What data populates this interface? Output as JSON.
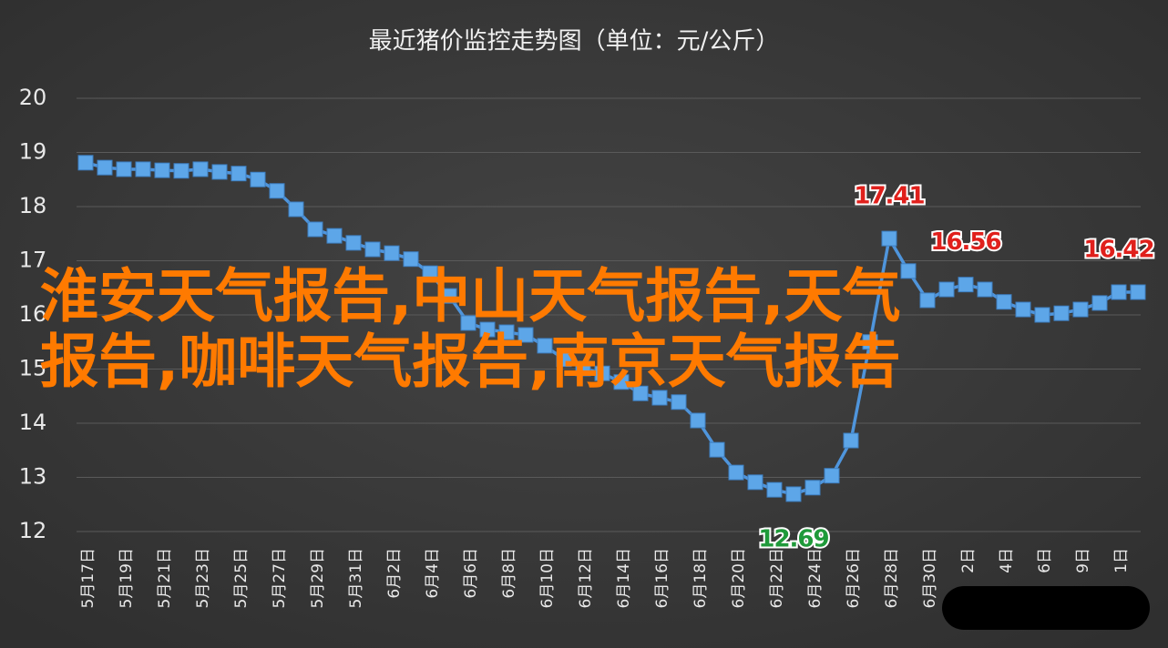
{
  "chart_data": {
    "type": "line",
    "title": "最近猪价监控走势图（单位：元/公斤）",
    "categories": [
      "5月17日",
      null,
      "5月19日",
      null,
      "5月21日",
      null,
      "5月23日",
      null,
      "5月25日",
      null,
      "5月27日",
      null,
      "5月29日",
      null,
      "5月31日",
      null,
      "6月2日",
      null,
      "6月4日",
      null,
      "6月6日",
      null,
      "6月8日",
      null,
      "6月10日",
      null,
      "6月12日",
      null,
      "6月14日",
      null,
      "6月16日",
      null,
      "6月18日",
      null,
      "6月20日",
      null,
      "6月22日",
      null,
      "6月24日",
      null,
      "6月26日",
      null,
      "6月28日",
      null,
      "6月30日",
      null,
      "2日",
      null,
      "4日",
      null,
      "6日",
      null,
      "9日",
      null,
      "1日",
      null
    ],
    "values": [
      18.81,
      18.72,
      18.69,
      18.69,
      18.67,
      18.66,
      18.69,
      18.64,
      18.61,
      18.5,
      18.29,
      17.95,
      17.58,
      17.46,
      17.33,
      17.21,
      17.14,
      17.03,
      16.77,
      16.35,
      15.85,
      15.73,
      15.68,
      15.63,
      15.43,
      15.18,
      15.01,
      14.92,
      14.76,
      14.55,
      14.47,
      14.39,
      14.05,
      13.51,
      13.09,
      12.91,
      12.77,
      12.69,
      12.81,
      13.03,
      13.68,
      15.5,
      17.41,
      16.81,
      16.27,
      16.47,
      16.56,
      16.47,
      16.24,
      16.1,
      16.0,
      16.03,
      16.1,
      16.22,
      16.42,
      16.42
    ],
    "color": "#4f95dc",
    "marker_color": "#5da6e8",
    "labeled_points": [
      {
        "index": 42,
        "color": "#e0201c"
      },
      {
        "index": 46,
        "color": "#e0201c"
      },
      {
        "index": 54,
        "color": "#e0201c"
      },
      {
        "index": 37,
        "color": "#1f9a3a"
      }
    ],
    "ylim": [
      12,
      20
    ],
    "yticks": [
      12,
      13,
      14,
      15,
      16,
      17,
      18,
      19,
      20
    ],
    "grid": true,
    "overlay": [
      "淮安天气报告,中山天气报告,天气",
      "报告,咖啡天气报告,南京天气报告"
    ]
  }
}
